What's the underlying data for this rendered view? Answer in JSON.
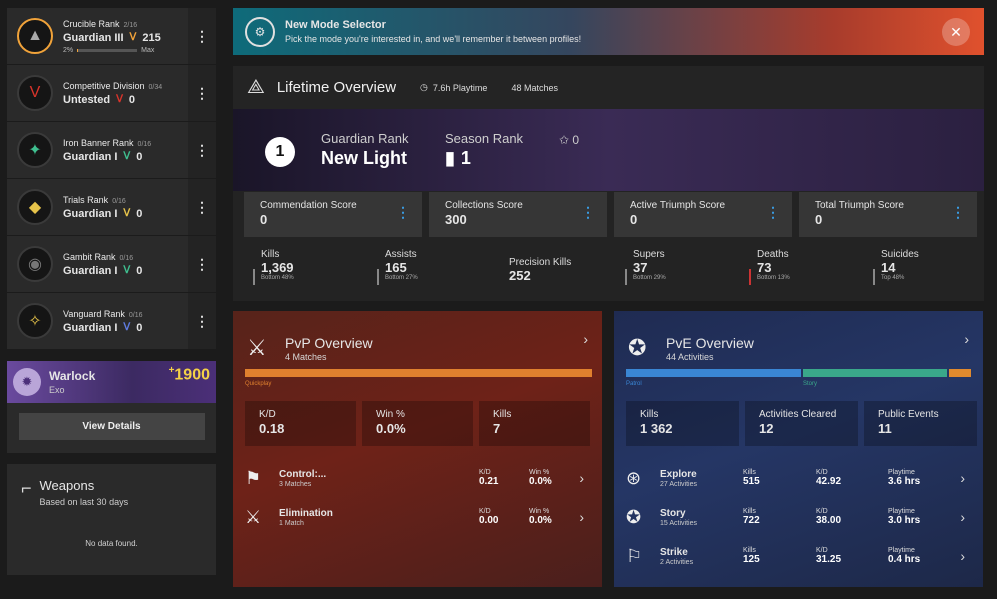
{
  "ranks": [
    {
      "title": "Crucible Rank",
      "count": "2/16",
      "sub": "Guardian III",
      "value": "215",
      "progress_pct": "2%",
      "progress_max": "Max",
      "progress": 0.02,
      "color": "#f1a33a"
    },
    {
      "title": "Competitive Division",
      "count": "0/34",
      "sub": "Untested",
      "value": "0",
      "color": "#d9342b"
    },
    {
      "title": "Iron Banner Rank",
      "count": "0/16",
      "sub": "Guardian I",
      "value": "0",
      "color": "#3fbf8f"
    },
    {
      "title": "Trials Rank",
      "count": "0/16",
      "sub": "Guardian I",
      "value": "0",
      "color": "#e6c34a"
    },
    {
      "title": "Gambit Rank",
      "count": "0/16",
      "sub": "Guardian I",
      "value": "0",
      "color": "#3fbf8f"
    },
    {
      "title": "Vanguard Rank",
      "count": "0/16",
      "sub": "Guardian I",
      "value": "0",
      "color": "#5f7be0"
    }
  ],
  "character": {
    "class": "Warlock",
    "race": "Exo",
    "power": "1900",
    "power_prefix": "+",
    "button": "View Details"
  },
  "weapons": {
    "title": "Weapons",
    "subtitle": "Based on last 30 days",
    "empty": "No data found."
  },
  "banner": {
    "title": "New Mode Selector",
    "subtitle": "Pick the mode you're interested in, and we'll remember it between profiles!"
  },
  "lifetime": {
    "title": "Lifetime Overview",
    "playtime": "7.6h Playtime",
    "matches": "48 Matches",
    "rank_number": "1",
    "guardian_rank_label": "Guardian Rank",
    "guardian_rank_value": "New Light",
    "season_rank_label": "Season Rank",
    "season_rank_value": "1",
    "star_value": "0",
    "scores": [
      {
        "label": "Commendation Score",
        "value": "0"
      },
      {
        "label": "Collections Score",
        "value": "300"
      },
      {
        "label": "Active Triumph Score",
        "value": "0"
      },
      {
        "label": "Total Triumph Score",
        "value": "0"
      }
    ],
    "stats": [
      {
        "label": "Kills",
        "value": "1,369",
        "pct": "Bottom 48%"
      },
      {
        "label": "Assists",
        "value": "165",
        "pct": "Bottom 27%"
      },
      {
        "label": "Precision Kills",
        "value": "252",
        "pct": ""
      },
      {
        "label": "Supers",
        "value": "37",
        "pct": "Bottom 29%"
      },
      {
        "label": "Deaths",
        "value": "73",
        "pct": "Bottom 13%"
      },
      {
        "label": "Suicides",
        "value": "14",
        "pct": "Top 48%"
      }
    ]
  },
  "pvp": {
    "title": "PvP Overview",
    "subtitle": "4 Matches",
    "mode_label": "Quickplay",
    "stats": [
      {
        "label": "K/D",
        "value": "0.18"
      },
      {
        "label": "Win %",
        "value": "0.0%"
      },
      {
        "label": "Kills",
        "value": "7"
      }
    ],
    "modes": [
      {
        "name": "Control:...",
        "sub": "3 Matches",
        "kd_label": "K/D",
        "kd": "0.21",
        "win_label": "Win %",
        "win": "0.0%"
      },
      {
        "name": "Elimination",
        "sub": "1 Match",
        "kd_label": "K/D",
        "kd": "0.00",
        "win_label": "Win %",
        "win": "0.0%"
      }
    ]
  },
  "pve": {
    "title": "PvE Overview",
    "subtitle": "44 Activities",
    "segments": [
      {
        "label": "Patrol",
        "color": "#3a86d4"
      },
      {
        "label": "Story",
        "color": "#3aa88a"
      },
      {
        "label": "",
        "color": "#e08a2e"
      }
    ],
    "stats": [
      {
        "label": "Kills",
        "value": "1 362"
      },
      {
        "label": "Activities Cleared",
        "value": "12"
      },
      {
        "label": "Public Events",
        "value": "11"
      }
    ],
    "modes": [
      {
        "name": "Explore",
        "sub": "27 Activities",
        "kills_label": "Kills",
        "kills": "515",
        "kd_label": "K/D",
        "kd": "42.92",
        "play_label": "Playtime",
        "play": "3.6 hrs"
      },
      {
        "name": "Story",
        "sub": "15 Activities",
        "kills_label": "Kills",
        "kills": "722",
        "kd_label": "K/D",
        "kd": "38.00",
        "play_label": "Playtime",
        "play": "3.0 hrs"
      },
      {
        "name": "Strike",
        "sub": "2 Activities",
        "kills_label": "Kills",
        "kills": "125",
        "kd_label": "K/D",
        "kd": "31.25",
        "play_label": "Playtime",
        "play": "0.4 hrs"
      }
    ]
  }
}
